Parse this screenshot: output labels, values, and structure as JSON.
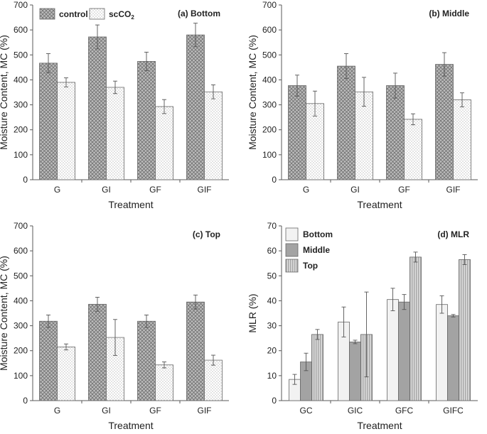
{
  "colors": {
    "control_fill": "#bdbdbd",
    "treated_fill": "#ffffff",
    "bottom_fill": "#f2f2f2",
    "middle_fill": "#a3a3a3",
    "top_fill": "#cfcfcf",
    "axis": "#595959",
    "error_bar": "#555555"
  },
  "chart_data": [
    {
      "type": "bar",
      "id": "bottom",
      "label": "(a) Bottom",
      "categories": [
        "G",
        "GI",
        "GF",
        "GIF"
      ],
      "xlabel": "Treatment",
      "ylabel": "Moisture Content, MC (%)",
      "ylim": [
        0,
        700
      ],
      "yticks": [
        0,
        100,
        200,
        300,
        400,
        500,
        600,
        700
      ],
      "legend": {
        "position": "top-left",
        "entries": [
          "control",
          "scCO2"
        ]
      },
      "series": [
        {
          "name": "control",
          "pattern": "crosshatch",
          "values": [
            467,
            572,
            474,
            580
          ],
          "errors": [
            38,
            48,
            37,
            47
          ]
        },
        {
          "name": "scCO2",
          "pattern": "dots",
          "values": [
            390,
            370,
            293,
            352
          ],
          "errors": [
            18,
            25,
            28,
            28
          ]
        }
      ]
    },
    {
      "type": "bar",
      "id": "middle",
      "label": "(b) Middle",
      "categories": [
        "G",
        "GI",
        "GF",
        "GIF"
      ],
      "xlabel": "Treatment",
      "ylabel": "Moisture Content, MC (%)",
      "ylim": [
        0,
        700
      ],
      "yticks": [
        0,
        100,
        200,
        300,
        400,
        500,
        600,
        700
      ],
      "series": [
        {
          "name": "control",
          "pattern": "crosshatch",
          "values": [
            377,
            455,
            377,
            462
          ],
          "errors": [
            42,
            50,
            50,
            47
          ]
        },
        {
          "name": "scCO2",
          "pattern": "dots",
          "values": [
            305,
            352,
            242,
            320
          ],
          "errors": [
            50,
            58,
            22,
            28
          ]
        }
      ]
    },
    {
      "type": "bar",
      "id": "top",
      "label": "(c) Top",
      "categories": [
        "G",
        "GI",
        "GF",
        "GIF"
      ],
      "xlabel": "Treatment",
      "ylabel": "Moisture Content, MC (%)",
      "ylim": [
        0,
        700
      ],
      "yticks": [
        0,
        100,
        200,
        300,
        400,
        500,
        600,
        700
      ],
      "series": [
        {
          "name": "control",
          "pattern": "crosshatch",
          "values": [
            318,
            386,
            318,
            395
          ],
          "errors": [
            25,
            28,
            25,
            28
          ]
        },
        {
          "name": "scCO2",
          "pattern": "dots",
          "values": [
            215,
            253,
            143,
            162
          ],
          "errors": [
            12,
            72,
            12,
            20
          ]
        }
      ]
    },
    {
      "type": "bar",
      "id": "mlr",
      "label": "(d) MLR",
      "categories": [
        "GC",
        "GIC",
        "GFC",
        "GIFC"
      ],
      "xlabel": "Treatment",
      "ylabel": "MLR (%)",
      "ylim": [
        0,
        70
      ],
      "yticks": [
        0,
        10,
        20,
        30,
        40,
        50,
        60,
        70
      ],
      "legend": {
        "position": "top-left",
        "entries": [
          "Bottom",
          "Middle",
          "Top"
        ]
      },
      "series": [
        {
          "name": "Bottom",
          "pattern": "light",
          "values": [
            8.5,
            31.5,
            40.5,
            38.5
          ],
          "errors": [
            2,
            6,
            4.5,
            3.5
          ]
        },
        {
          "name": "Middle",
          "pattern": "solid",
          "values": [
            15.5,
            23.5,
            39.5,
            34
          ],
          "errors": [
            3.5,
            0.7,
            3,
            0.5
          ]
        },
        {
          "name": "Top",
          "pattern": "stripes",
          "values": [
            26.5,
            26.5,
            57.5,
            56.5
          ],
          "errors": [
            2,
            17,
            2,
            2
          ]
        }
      ]
    }
  ]
}
